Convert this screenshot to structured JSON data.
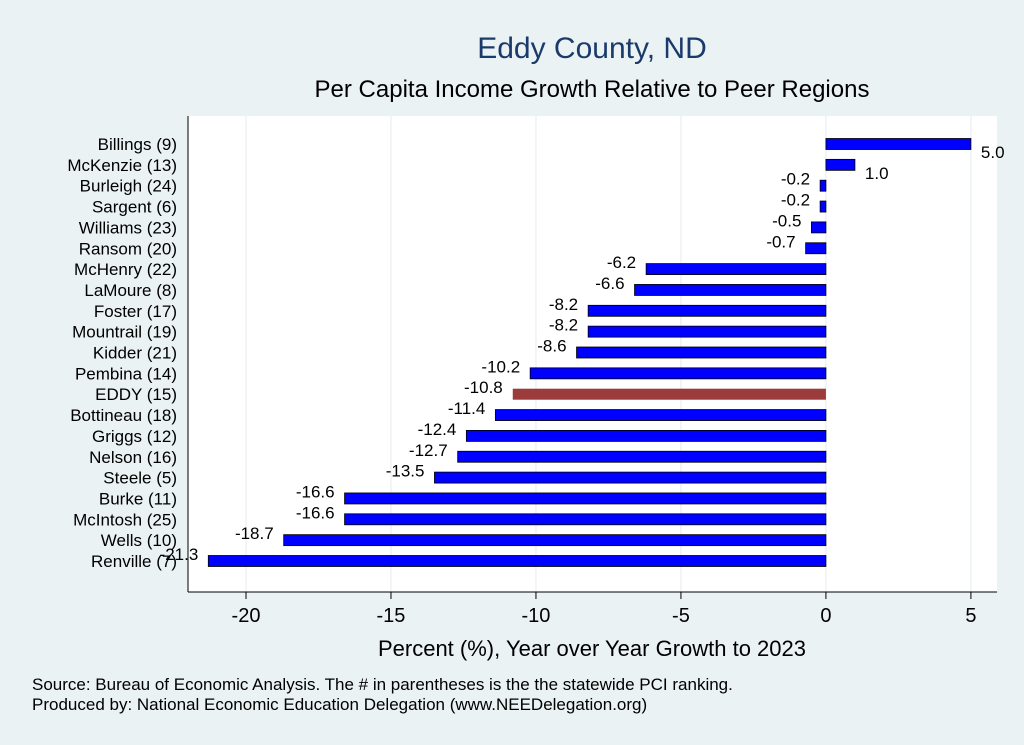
{
  "chart_data": {
    "type": "bar",
    "orientation": "horizontal",
    "title": "Eddy County, ND",
    "subtitle": "Per Capita Income Growth Relative to Peer Regions",
    "xlabel": "Percent (%), Year over Year Growth to 2023",
    "xlim": [
      -22,
      5.9
    ],
    "xticks": [
      -20,
      -15,
      -10,
      -5,
      0,
      5
    ],
    "grid": true,
    "categories": [
      "Billings  (9)",
      "McKenzie (13)",
      "Burleigh (24)",
      "Sargent  (6)",
      "Williams (23)",
      "Ransom (20)",
      "McHenry (22)",
      "LaMoure  (8)",
      "Foster (17)",
      "Mountrail (19)",
      "Kidder (21)",
      "Pembina (14)",
      "EDDY (15)",
      "Bottineau (18)",
      "Griggs (12)",
      "Nelson (16)",
      "Steele  (5)",
      "Burke (11)",
      "McIntosh (25)",
      "Wells (10)",
      "Renville  (7)"
    ],
    "values": [
      5.0,
      1.0,
      -0.2,
      -0.2,
      -0.5,
      -0.7,
      -6.2,
      -6.6,
      -8.2,
      -8.2,
      -8.6,
      -10.2,
      -10.8,
      -11.4,
      -12.4,
      -12.7,
      -13.5,
      -16.6,
      -16.6,
      -18.7,
      -21.3
    ],
    "labels": [
      "5.0",
      "1.0",
      "-0.2",
      "-0.2",
      "-0.5",
      "-0.7",
      "-6.2",
      "-6.6",
      "-8.2",
      "-8.2",
      "-8.6",
      "-10.2",
      "-10.8",
      "-11.4",
      "-12.4",
      "-12.7",
      "-13.5",
      "-16.6",
      "-16.6",
      "-18.7",
      "-21.3"
    ],
    "highlight_index": 12,
    "bar_color": "#0000ff",
    "highlight_color": "#9b3b3b"
  },
  "notes": {
    "source": "Source: Bureau of Economic Analysis. The # in parentheses is the the statewide PCI ranking.",
    "produced": "Produced by: National Economic Education Delegation (www.NEEDelegation.org)"
  }
}
